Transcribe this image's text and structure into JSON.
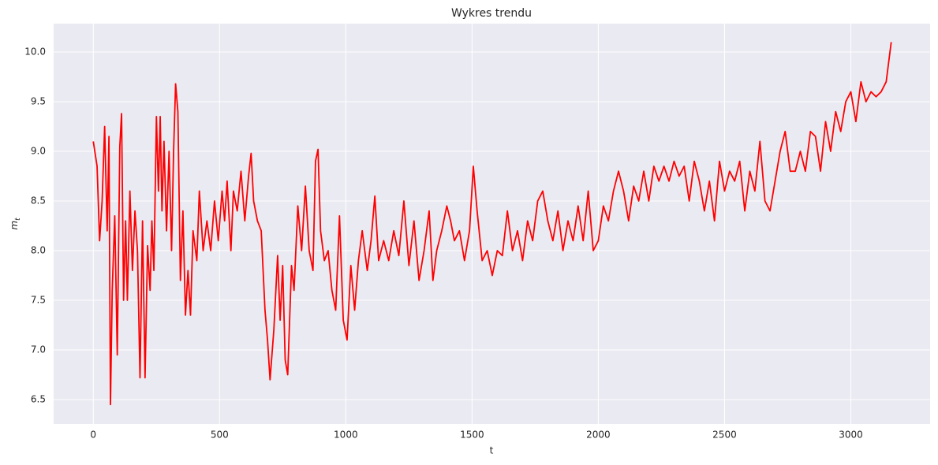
{
  "chart_data": {
    "type": "line",
    "title": "Wykres trendu",
    "xlabel": "t",
    "ylabel": [
      "m",
      "t"
    ],
    "color": "#ff0000",
    "grid": true,
    "xlim": [
      -157,
      3314
    ],
    "ylim": [
      6.254,
      10.286
    ],
    "xticks": [
      0,
      500,
      1000,
      1500,
      2000,
      2500,
      3000
    ],
    "yticks": [
      6.5,
      {
        "value": 7,
        "label": "7.0"
      },
      7.5,
      {
        "value": 8,
        "label": "8.0"
      },
      8.5,
      {
        "value": 9,
        "label": "9.0"
      },
      9.5,
      {
        "value": 10,
        "label": "10.0"
      }
    ],
    "x": [
      0,
      15,
      25,
      35,
      45,
      55,
      62,
      68,
      75,
      85,
      95,
      105,
      112,
      120,
      128,
      135,
      145,
      155,
      165,
      175,
      185,
      195,
      205,
      215,
      225,
      232,
      240,
      250,
      258,
      265,
      272,
      280,
      290,
      300,
      310,
      318,
      326,
      335,
      345,
      355,
      365,
      375,
      385,
      395,
      410,
      420,
      435,
      450,
      465,
      480,
      495,
      510,
      520,
      530,
      545,
      555,
      570,
      585,
      600,
      615,
      625,
      635,
      650,
      665,
      680,
      690,
      700,
      715,
      730,
      740,
      750,
      760,
      770,
      785,
      795,
      810,
      825,
      840,
      855,
      870,
      880,
      890,
      900,
      915,
      930,
      945,
      960,
      975,
      990,
      1005,
      1020,
      1035,
      1050,
      1065,
      1085,
      1100,
      1115,
      1130,
      1150,
      1170,
      1190,
      1210,
      1230,
      1250,
      1270,
      1290,
      1310,
      1330,
      1345,
      1360,
      1380,
      1400,
      1415,
      1430,
      1450,
      1470,
      1490,
      1505,
      1520,
      1540,
      1560,
      1580,
      1600,
      1620,
      1640,
      1660,
      1680,
      1700,
      1720,
      1740,
      1760,
      1780,
      1800,
      1820,
      1840,
      1860,
      1880,
      1900,
      1920,
      1940,
      1960,
      1980,
      2000,
      2020,
      2040,
      2060,
      2080,
      2100,
      2120,
      2140,
      2160,
      2180,
      2200,
      2220,
      2240,
      2260,
      2280,
      2300,
      2320,
      2340,
      2360,
      2380,
      2400,
      2420,
      2440,
      2460,
      2480,
      2500,
      2520,
      2540,
      2560,
      2580,
      2600,
      2620,
      2640,
      2660,
      2680,
      2700,
      2720,
      2740,
      2760,
      2780,
      2800,
      2820,
      2840,
      2860,
      2880,
      2900,
      2920,
      2940,
      2960,
      2980,
      3000,
      3020,
      3040,
      3060,
      3080,
      3100,
      3120,
      3140,
      3160
    ],
    "values": [
      9.1,
      8.85,
      8.1,
      8.5,
      9.25,
      8.2,
      9.15,
      6.45,
      7.6,
      8.35,
      6.95,
      9.05,
      9.38,
      7.5,
      8.3,
      7.5,
      8.6,
      7.8,
      8.4,
      8.0,
      6.72,
      8.3,
      6.72,
      8.05,
      7.6,
      8.3,
      7.8,
      9.35,
      8.6,
      9.35,
      8.4,
      9.1,
      8.2,
      9.0,
      8.0,
      9.0,
      9.68,
      9.4,
      7.7,
      8.4,
      7.35,
      7.8,
      7.35,
      8.2,
      7.9,
      8.6,
      8.0,
      8.3,
      8.0,
      8.5,
      8.1,
      8.6,
      8.3,
      8.7,
      8.0,
      8.6,
      8.4,
      8.8,
      8.3,
      8.75,
      8.98,
      8.5,
      8.3,
      8.2,
      7.4,
      7.1,
      6.7,
      7.2,
      7.95,
      7.3,
      7.85,
      6.9,
      6.75,
      7.85,
      7.6,
      8.45,
      8.0,
      8.65,
      8.0,
      7.8,
      8.9,
      9.02,
      8.2,
      7.9,
      8.0,
      7.6,
      7.4,
      8.35,
      7.3,
      7.1,
      7.85,
      7.4,
      7.9,
      8.2,
      7.8,
      8.1,
      8.55,
      7.9,
      8.1,
      7.9,
      8.2,
      7.95,
      8.5,
      7.85,
      8.3,
      7.7,
      8.0,
      8.4,
      7.7,
      8.0,
      8.2,
      8.45,
      8.3,
      8.1,
      8.2,
      7.9,
      8.2,
      8.85,
      8.4,
      7.9,
      8.0,
      7.75,
      8.0,
      7.95,
      8.4,
      8.0,
      8.2,
      7.9,
      8.3,
      8.1,
      8.5,
      8.6,
      8.3,
      8.1,
      8.4,
      8.0,
      8.3,
      8.1,
      8.45,
      8.1,
      8.6,
      8.0,
      8.1,
      8.45,
      8.3,
      8.6,
      8.8,
      8.6,
      8.3,
      8.65,
      8.5,
      8.8,
      8.5,
      8.85,
      8.7,
      8.85,
      8.7,
      8.9,
      8.75,
      8.85,
      8.5,
      8.9,
      8.7,
      8.4,
      8.7,
      8.3,
      8.9,
      8.6,
      8.8,
      8.7,
      8.9,
      8.4,
      8.8,
      8.6,
      9.1,
      8.5,
      8.4,
      8.7,
      9.0,
      9.2,
      8.8,
      8.8,
      9.0,
      8.8,
      9.2,
      9.15,
      8.8,
      9.3,
      9.0,
      9.4,
      9.2,
      9.5,
      9.6,
      9.3,
      9.7,
      9.5,
      9.6,
      9.55,
      9.6,
      9.7,
      10.1
    ]
  }
}
